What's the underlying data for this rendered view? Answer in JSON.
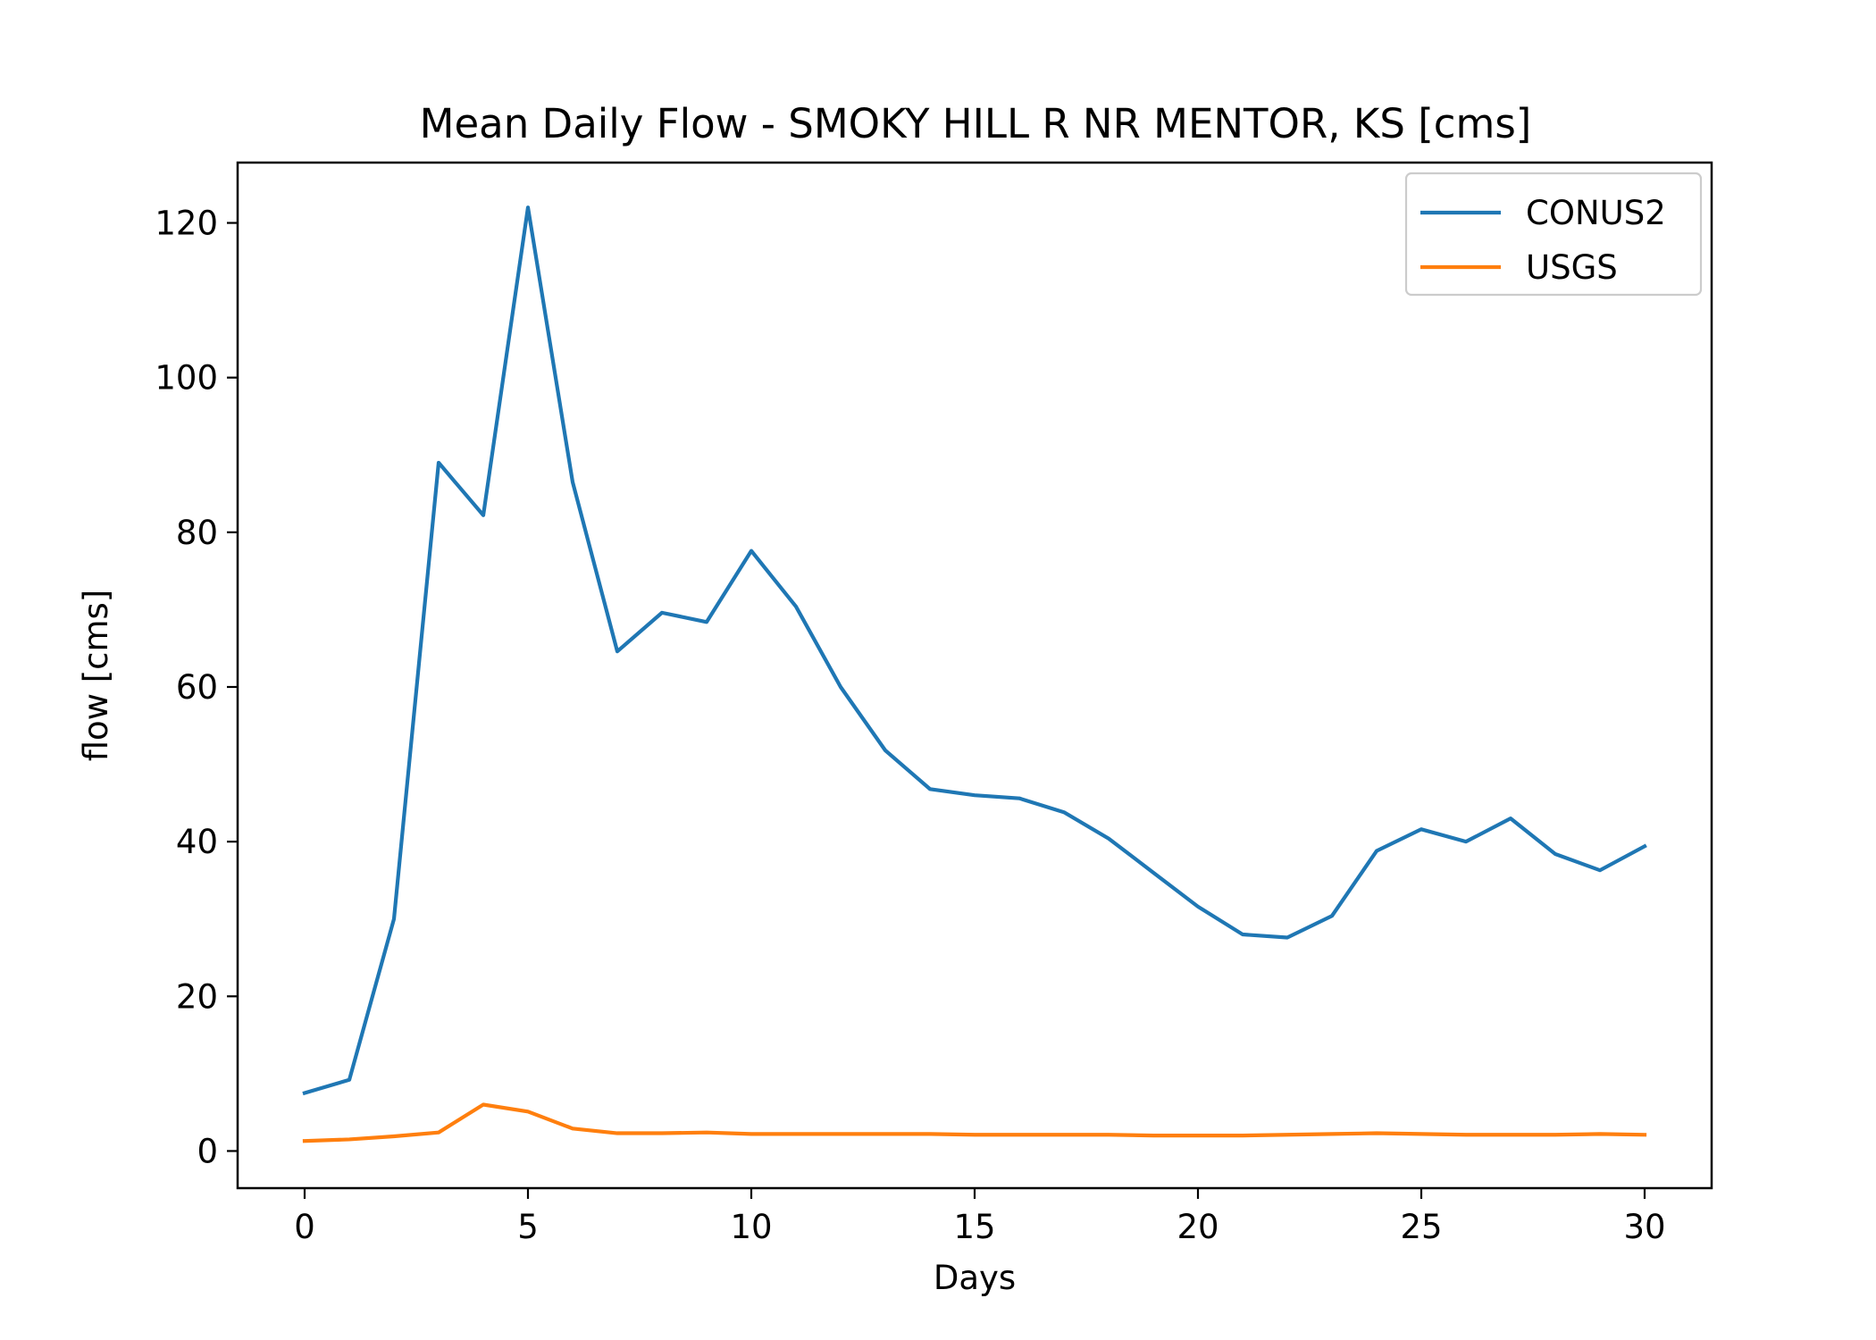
{
  "chart_data": {
    "type": "line",
    "title": "Mean Daily Flow - SMOKY HILL R NR MENTOR, KS [cms]",
    "xlabel": "Days",
    "ylabel": "flow [cms]",
    "xlim": [
      -1.5,
      31.5
    ],
    "ylim": [
      -4.8,
      127.8
    ],
    "xticks": [
      0,
      5,
      10,
      15,
      20,
      25,
      30
    ],
    "yticks": [
      0,
      20,
      40,
      60,
      80,
      100,
      120
    ],
    "grid": false,
    "legend_position": "top-right",
    "x": [
      0,
      1,
      2,
      3,
      4,
      5,
      6,
      7,
      8,
      9,
      10,
      11,
      12,
      13,
      14,
      15,
      16,
      17,
      18,
      19,
      20,
      21,
      22,
      23,
      24,
      25,
      26,
      27,
      28,
      29,
      30
    ],
    "series": [
      {
        "name": "CONUS2",
        "color": "#1f77b4",
        "values": [
          7.5,
          9.2,
          30,
          89,
          82.2,
          122,
          86.5,
          64.6,
          69.6,
          68.4,
          77.6,
          70.4,
          60,
          51.8,
          46.8,
          46,
          45.6,
          43.8,
          40.4,
          36,
          31.6,
          28,
          27.6,
          30.4,
          38.8,
          41.6,
          40,
          43,
          38.4,
          36.3,
          39.4
        ]
      },
      {
        "name": "USGS",
        "color": "#ff7f0e",
        "values": [
          1.3,
          1.5,
          1.9,
          2.4,
          6.0,
          5.1,
          2.9,
          2.3,
          2.3,
          2.4,
          2.2,
          2.2,
          2.2,
          2.2,
          2.2,
          2.1,
          2.1,
          2.1,
          2.1,
          2.0,
          2.0,
          2.0,
          2.1,
          2.2,
          2.3,
          2.2,
          2.1,
          2.1,
          2.1,
          2.2,
          2.1
        ]
      }
    ]
  }
}
